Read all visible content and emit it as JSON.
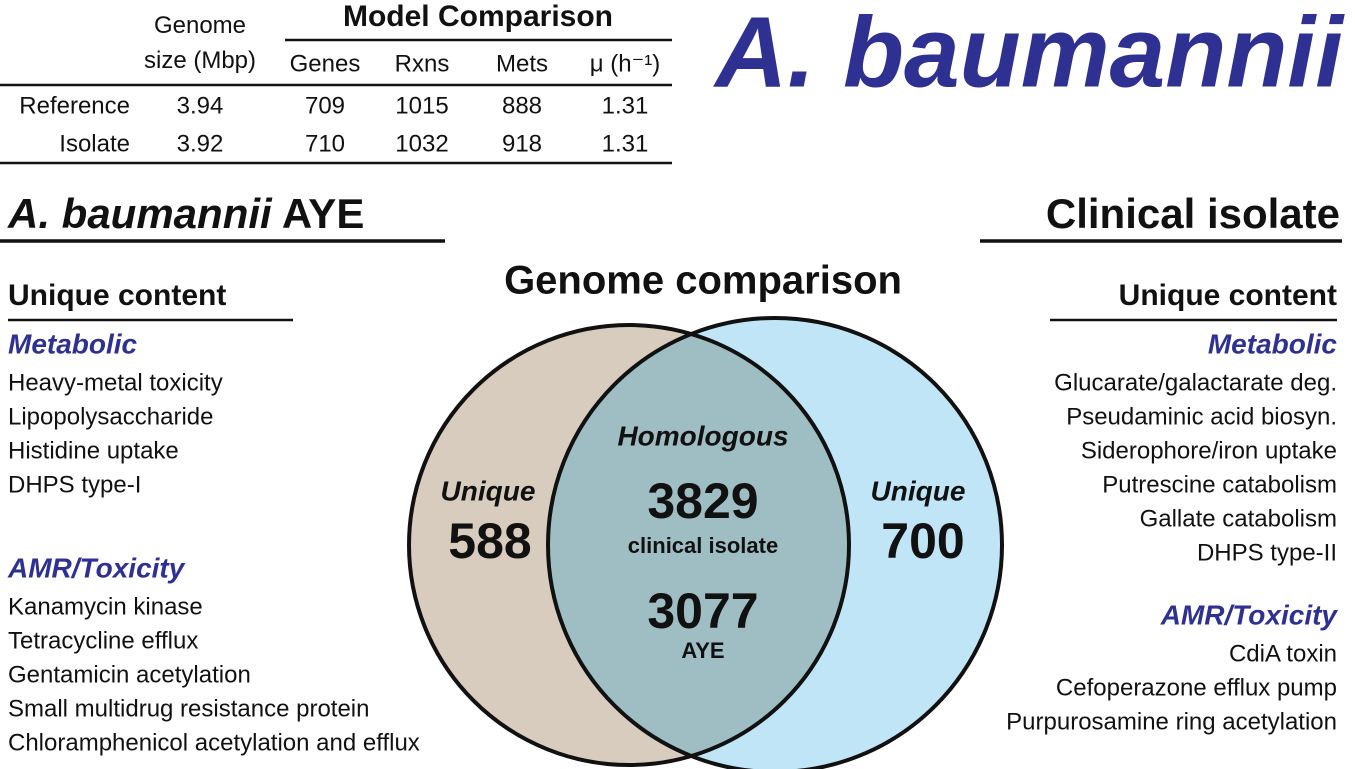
{
  "title": "A. baumannii",
  "table": {
    "group_header": "Model Comparison",
    "columns": [
      "Genome size (Mbp)",
      "Genes",
      "Rxns",
      "Mets",
      "μ (h⁻¹)"
    ],
    "rows": [
      [
        "Reference",
        3.94,
        709,
        1015,
        888,
        1.31
      ],
      [
        "Isolate",
        3.92,
        710,
        1032,
        918,
        1.31
      ]
    ]
  },
  "left_panel": {
    "title_italic": "A. baumannii",
    "title_rest": "AYE",
    "heading": "Unique content",
    "sections": [
      {
        "title": "Metabolic",
        "items": [
          "Heavy-metal toxicity",
          "Lipopolysaccharide",
          "Histidine uptake",
          "DHPS type-I"
        ]
      },
      {
        "title": "AMR/Toxicity",
        "items": [
          "Kanamycin kinase",
          "Tetracycline efflux",
          "Gentamicin acetylation",
          "Small multidrug resistance protein",
          "Chloramphenicol acetylation and efflux"
        ]
      }
    ]
  },
  "right_panel": {
    "title": "Clinical isolate",
    "heading": "Unique content",
    "sections": [
      {
        "title": "Metabolic",
        "items": [
          "Glucarate/galactarate deg.",
          "Pseudaminic acid biosyn.",
          "Siderophore/iron uptake",
          "Putrescine catabolism",
          "Gallate catabolism",
          "DHPS type-II"
        ]
      },
      {
        "title": "AMR/Toxicity",
        "items": [
          "CdiA toxin",
          "Cefoperazone efflux pump",
          "Purpurosamine ring acetylation"
        ]
      }
    ]
  },
  "venn": {
    "title": "Genome comparison",
    "left": {
      "label": "Unique",
      "value": 588
    },
    "right": {
      "label": "Unique",
      "value": 700
    },
    "overlap": {
      "label": "Homologous",
      "counts": [
        {
          "value": 3829,
          "label": "clinical isolate"
        },
        {
          "value": 3077,
          "label": "AYE"
        }
      ]
    }
  }
}
